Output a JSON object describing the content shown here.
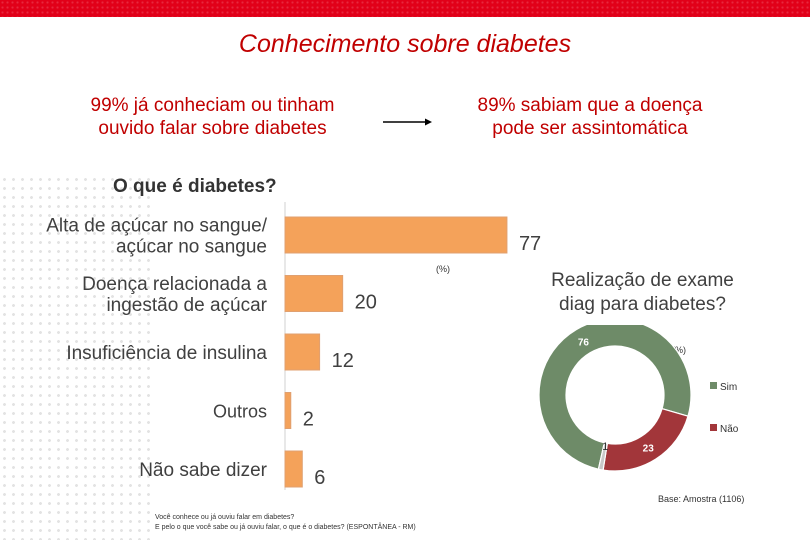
{
  "header": {
    "title": "Conhecimento sobre diabetes",
    "fact_left": [
      "99% já conheciam ou tinham",
      "ouvido falar sobre diabetes"
    ],
    "fact_right": [
      "89% sabiam que a doença",
      "pode ser assintomática"
    ]
  },
  "colors": {
    "accent": "#c00000",
    "bar": "#f4a25a",
    "sim": "#6e8b68",
    "nao": "#a2363a",
    "gap": "#c9c9c9"
  },
  "chart_data": [
    {
      "type": "bar",
      "orientation": "horizontal",
      "title": "O que é diabetes?",
      "unit": "(%)",
      "categories": [
        [
          "Alta de açúcar no sangue/",
          "açúcar no sangue"
        ],
        [
          "Doença relacionada a",
          "ingestão de açúcar"
        ],
        [
          "Insuficiência de insulina"
        ],
        [
          "Outros"
        ],
        [
          "Não sabe dizer"
        ]
      ],
      "values": [
        77,
        20,
        12,
        2,
        6
      ],
      "xlim": [
        0,
        85
      ]
    },
    {
      "type": "pie",
      "donut": true,
      "title": [
        "Realização de exame",
        "diag para diabetes?"
      ],
      "unit": "(%)",
      "labels": [
        "Sim",
        "Não",
        ""
      ],
      "values": [
        76,
        23,
        1
      ]
    }
  ],
  "notes": {
    "base": "Base: Amostra (1106)",
    "questions": [
      "Você conhece ou já ouviu falar em diabetes?",
      "E pelo o que você sabe ou já ouviu falar, o que é o diabetes? (ESPONTÂNEA - RM)"
    ]
  }
}
